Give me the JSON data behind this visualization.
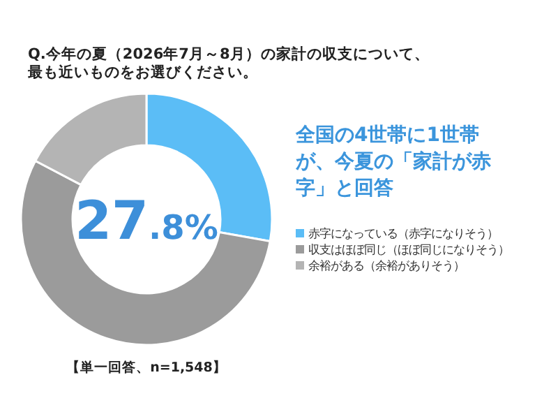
{
  "chart_data": {
    "type": "donut",
    "title": "Q.今年の夏（2026年7月～8月）の家計の収支について、最も近いものをお選びください。",
    "categories": [
      "赤字になっている（赤字になりそう）",
      "収支はほぼ同じ（ほぼ同じになりそう）",
      "余裕がある（余裕がありそう）"
    ],
    "values": [
      27.8,
      54.9,
      17.3
    ],
    "colors": [
      "#5bbdf6",
      "#9b9b9b",
      "#b4b4b4"
    ],
    "value_labels": [
      "27.8%",
      null,
      null
    ],
    "annotations": [
      "全国の4世帯に1世帯が、今夏の「家計が赤字」と回答",
      "【単一回答、n=1,548】"
    ],
    "legend": "right"
  }
}
